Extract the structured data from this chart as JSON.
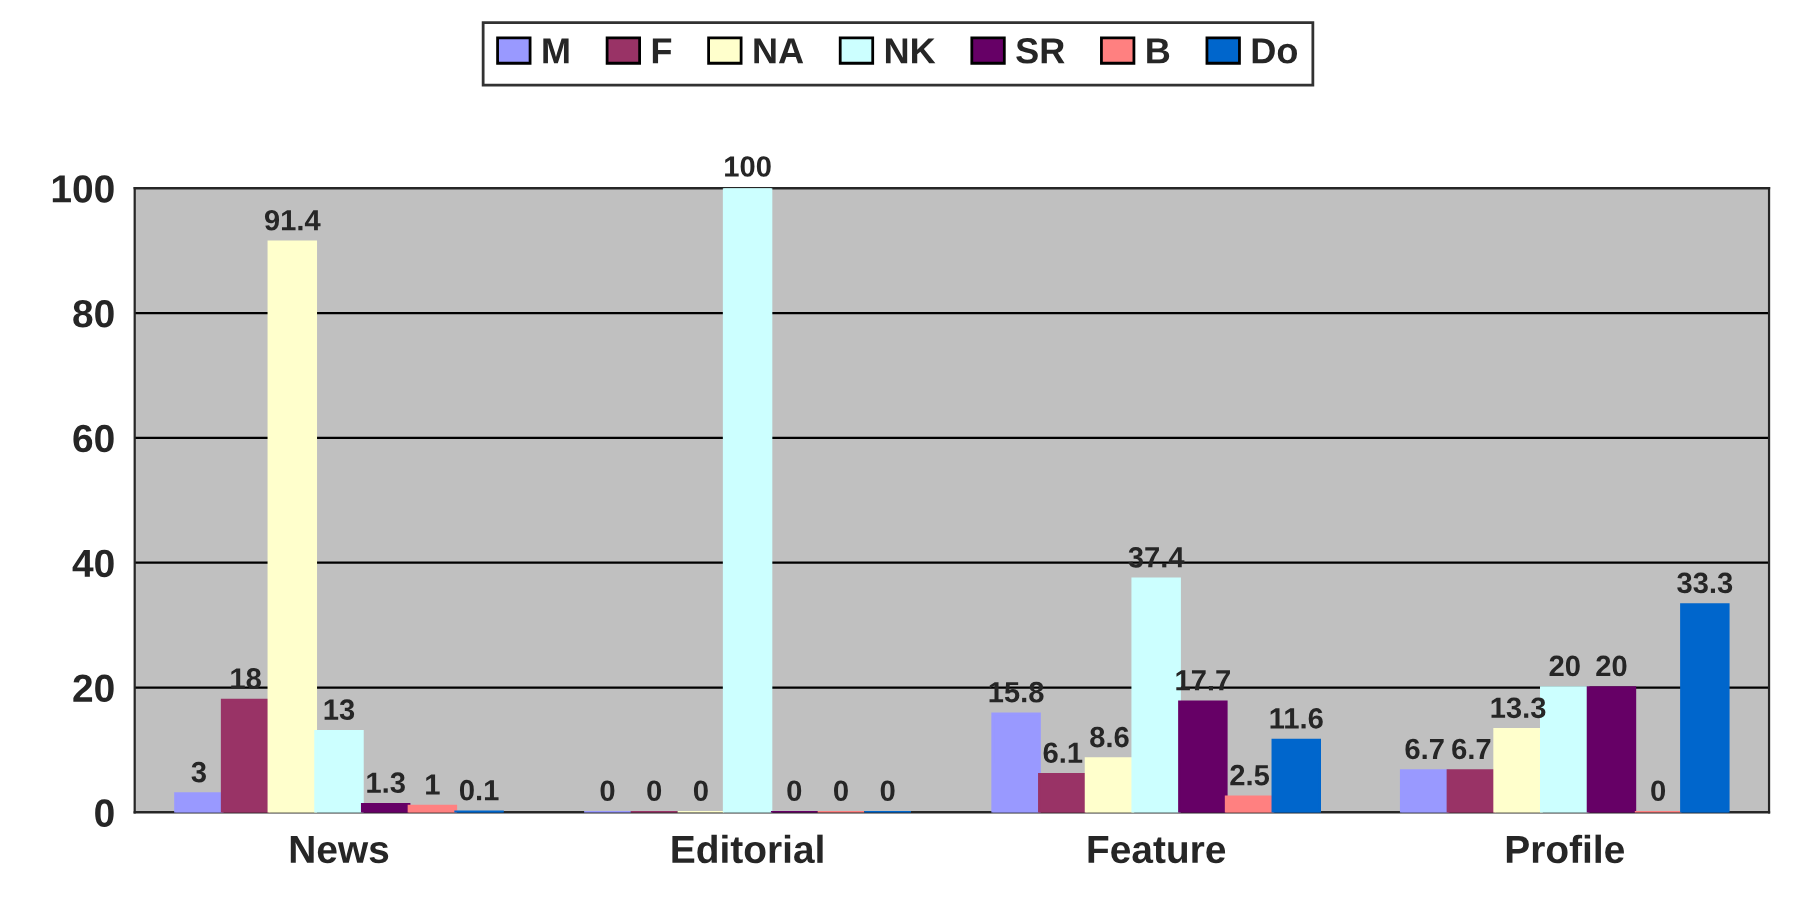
{
  "chart_data": {
    "type": "bar",
    "categories": [
      "News",
      "Editorial",
      "Feature",
      "Profile"
    ],
    "series": [
      {
        "name": "M",
        "color": "#9999ff",
        "values": [
          3,
          0,
          15.8,
          6.7
        ]
      },
      {
        "name": "F",
        "color": "#993366",
        "values": [
          18,
          0,
          6.1,
          6.7
        ]
      },
      {
        "name": "NA",
        "color": "#ffffcc",
        "values": [
          91.4,
          0,
          8.6,
          13.3
        ]
      },
      {
        "name": "NK",
        "color": "#ccffff",
        "values": [
          13,
          100,
          37.4,
          20
        ]
      },
      {
        "name": "SR",
        "color": "#660066",
        "values": [
          1.3,
          0,
          17.7,
          20
        ]
      },
      {
        "name": "B",
        "color": "#ff8080",
        "values": [
          1,
          0,
          2.5,
          0
        ]
      },
      {
        "name": "Do",
        "color": "#0066cc",
        "values": [
          0.1,
          0,
          11.6,
          33.3
        ]
      }
    ],
    "ylim": [
      0,
      100
    ],
    "yticks": [
      0,
      20,
      40,
      60,
      80,
      100
    ],
    "grid": "y",
    "legend": "top",
    "data_labels": true
  }
}
